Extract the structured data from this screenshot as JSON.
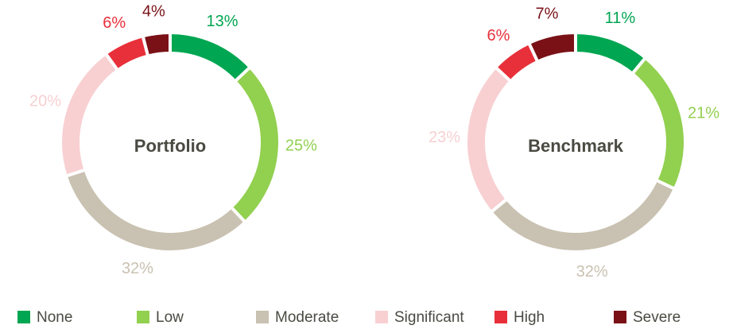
{
  "chart_data": [
    {
      "type": "donut",
      "title": "Portfolio",
      "categories": [
        "None",
        "Low",
        "Moderate",
        "Significant",
        "High",
        "Severe"
      ],
      "values": [
        13,
        25,
        32,
        20,
        6,
        4
      ],
      "value_labels": [
        "13%",
        "25%",
        "32%",
        "20%",
        "6%",
        "4%"
      ],
      "colors": [
        "#00a651",
        "#92d050",
        "#c9c1b1",
        "#f8d0d2",
        "#e8303a",
        "#7a1117"
      ]
    },
    {
      "type": "donut",
      "title": "Benchmark",
      "categories": [
        "None",
        "Low",
        "Moderate",
        "Significant",
        "High",
        "Severe"
      ],
      "values": [
        11,
        21,
        32,
        23,
        6,
        7
      ],
      "value_labels": [
        "11%",
        "21%",
        "32%",
        "23%",
        "6%",
        "7%"
      ],
      "colors": [
        "#00a651",
        "#92d050",
        "#c9c1b1",
        "#f8d0d2",
        "#e8303a",
        "#7a1117"
      ]
    }
  ]
}
